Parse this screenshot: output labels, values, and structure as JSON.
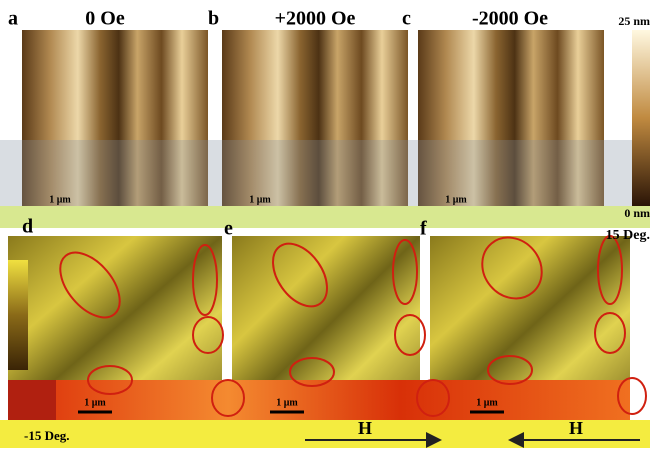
{
  "panels": [
    {
      "label": "a",
      "title": "0 Oe",
      "scale": "1 μm"
    },
    {
      "label": "b",
      "title": "+2000 Oe",
      "scale": "1 μm"
    },
    {
      "label": "c",
      "title": "-2000 Oe",
      "scale": "1 μm"
    }
  ],
  "colorbar_top": {
    "max": "25 nm",
    "min": "0 nm"
  },
  "bottom_panels": [
    {
      "label": "d",
      "scale": "1 μm"
    },
    {
      "label": "e",
      "scale": "1 μm"
    },
    {
      "label": "f",
      "scale": "1 μm"
    }
  ],
  "colorbar_bottom": {
    "max": "15 Deg.",
    "min": "-15 Deg."
  },
  "field_arrows": [
    {
      "label": "H"
    },
    {
      "label": "H"
    }
  ]
}
